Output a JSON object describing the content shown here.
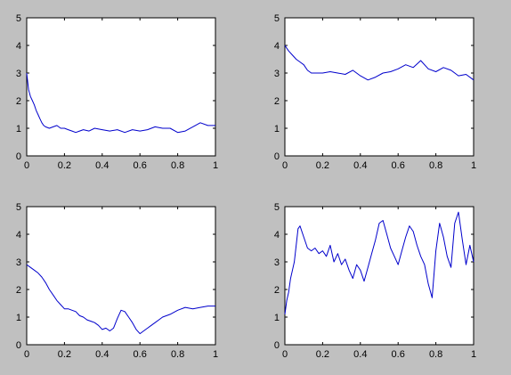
{
  "figure": {
    "background": "#c0c0c0",
    "axes_background": "#ffffff",
    "line_color": "#0000cc"
  },
  "chart_data": [
    {
      "type": "line",
      "xlim": [
        0,
        1
      ],
      "ylim": [
        0,
        5
      ],
      "x_ticks": [
        "0",
        "0.2",
        "0.4",
        "0.6",
        "0.8",
        "1"
      ],
      "y_ticks": [
        "0",
        "1",
        "2",
        "3",
        "4",
        "5"
      ],
      "grid": false,
      "series": [
        {
          "color": "#0000cc",
          "x": [
            0,
            0.01,
            0.02,
            0.03,
            0.04,
            0.05,
            0.06,
            0.07,
            0.08,
            0.09,
            0.1,
            0.12,
            0.14,
            0.16,
            0.18,
            0.2,
            0.22,
            0.24,
            0.26,
            0.28,
            0.3,
            0.33,
            0.36,
            0.4,
            0.44,
            0.48,
            0.52,
            0.56,
            0.6,
            0.64,
            0.68,
            0.72,
            0.76,
            0.8,
            0.84,
            0.88,
            0.92,
            0.96,
            1
          ],
          "y": [
            3.0,
            2.4,
            2.15,
            2.0,
            1.85,
            1.65,
            1.5,
            1.35,
            1.2,
            1.1,
            1.05,
            1.0,
            1.05,
            1.1,
            1.0,
            1.0,
            0.95,
            0.9,
            0.85,
            0.9,
            0.95,
            0.9,
            1.0,
            0.95,
            0.9,
            0.95,
            0.85,
            0.95,
            0.9,
            0.95,
            1.05,
            1.0,
            1.0,
            0.85,
            0.9,
            1.05,
            1.2,
            1.1,
            1.1
          ]
        }
      ]
    },
    {
      "type": "line",
      "xlim": [
        0,
        1
      ],
      "ylim": [
        0,
        5
      ],
      "x_ticks": [
        "0",
        "0.2",
        "0.4",
        "0.6",
        "0.8",
        "1"
      ],
      "y_ticks": [
        "0",
        "1",
        "2",
        "3",
        "4",
        "5"
      ],
      "grid": false,
      "series": [
        {
          "color": "#0000cc",
          "x": [
            0,
            0.02,
            0.04,
            0.06,
            0.08,
            0.1,
            0.12,
            0.14,
            0.16,
            0.2,
            0.24,
            0.28,
            0.32,
            0.36,
            0.4,
            0.44,
            0.48,
            0.52,
            0.56,
            0.6,
            0.64,
            0.68,
            0.72,
            0.76,
            0.8,
            0.84,
            0.88,
            0.92,
            0.96,
            1
          ],
          "y": [
            4.0,
            3.8,
            3.65,
            3.5,
            3.4,
            3.3,
            3.1,
            3.0,
            3.0,
            3.0,
            3.05,
            3.0,
            2.95,
            3.1,
            2.9,
            2.75,
            2.85,
            3.0,
            3.05,
            3.15,
            3.3,
            3.2,
            3.45,
            3.15,
            3.05,
            3.2,
            3.1,
            2.9,
            2.95,
            2.75
          ]
        }
      ]
    },
    {
      "type": "line",
      "xlim": [
        0,
        1
      ],
      "ylim": [
        0,
        5
      ],
      "x_ticks": [
        "0",
        "0.2",
        "0.4",
        "0.6",
        "0.8",
        "1"
      ],
      "y_ticks": [
        "0",
        "1",
        "2",
        "3",
        "4",
        "5"
      ],
      "grid": false,
      "series": [
        {
          "color": "#0000cc",
          "x": [
            0,
            0.02,
            0.04,
            0.06,
            0.08,
            0.1,
            0.12,
            0.14,
            0.16,
            0.18,
            0.2,
            0.22,
            0.24,
            0.26,
            0.28,
            0.3,
            0.32,
            0.34,
            0.36,
            0.38,
            0.4,
            0.42,
            0.44,
            0.46,
            0.48,
            0.5,
            0.52,
            0.54,
            0.56,
            0.58,
            0.6,
            0.62,
            0.64,
            0.66,
            0.68,
            0.7,
            0.72,
            0.76,
            0.8,
            0.84,
            0.88,
            0.92,
            0.96,
            1
          ],
          "y": [
            2.9,
            2.8,
            2.7,
            2.6,
            2.45,
            2.25,
            2.0,
            1.8,
            1.6,
            1.45,
            1.3,
            1.3,
            1.25,
            1.2,
            1.05,
            1.0,
            0.9,
            0.85,
            0.8,
            0.7,
            0.55,
            0.6,
            0.5,
            0.6,
            0.95,
            1.25,
            1.2,
            1.0,
            0.8,
            0.55,
            0.4,
            0.5,
            0.6,
            0.7,
            0.8,
            0.9,
            1.0,
            1.1,
            1.25,
            1.35,
            1.3,
            1.35,
            1.4,
            1.4
          ]
        }
      ]
    },
    {
      "type": "line",
      "xlim": [
        0,
        1
      ],
      "ylim": [
        0,
        5
      ],
      "x_ticks": [
        "0",
        "0.2",
        "0.4",
        "0.6",
        "0.8",
        "1"
      ],
      "y_ticks": [
        "0",
        "1",
        "2",
        "3",
        "4",
        "5"
      ],
      "grid": false,
      "series": [
        {
          "color": "#0000cc",
          "x": [
            0,
            0.01,
            0.02,
            0.03,
            0.04,
            0.05,
            0.06,
            0.07,
            0.08,
            0.1,
            0.12,
            0.14,
            0.16,
            0.18,
            0.2,
            0.22,
            0.24,
            0.26,
            0.28,
            0.3,
            0.32,
            0.34,
            0.36,
            0.38,
            0.4,
            0.42,
            0.44,
            0.46,
            0.48,
            0.5,
            0.52,
            0.54,
            0.56,
            0.58,
            0.6,
            0.62,
            0.64,
            0.66,
            0.68,
            0.7,
            0.72,
            0.74,
            0.76,
            0.78,
            0.8,
            0.82,
            0.84,
            0.86,
            0.88,
            0.9,
            0.92,
            0.94,
            0.96,
            0.98,
            1
          ],
          "y": [
            1.1,
            1.6,
            1.9,
            2.4,
            2.7,
            3.0,
            3.6,
            4.2,
            4.3,
            3.9,
            3.5,
            3.4,
            3.5,
            3.3,
            3.4,
            3.2,
            3.6,
            3.0,
            3.3,
            2.9,
            3.1,
            2.7,
            2.4,
            2.9,
            2.7,
            2.3,
            2.8,
            3.3,
            3.8,
            4.4,
            4.5,
            4.0,
            3.5,
            3.2,
            2.9,
            3.4,
            3.9,
            4.3,
            4.1,
            3.6,
            3.2,
            2.9,
            2.2,
            1.7,
            3.4,
            4.4,
            3.9,
            3.2,
            2.8,
            4.4,
            4.8,
            3.8,
            2.9,
            3.6,
            3.0
          ]
        }
      ]
    }
  ]
}
